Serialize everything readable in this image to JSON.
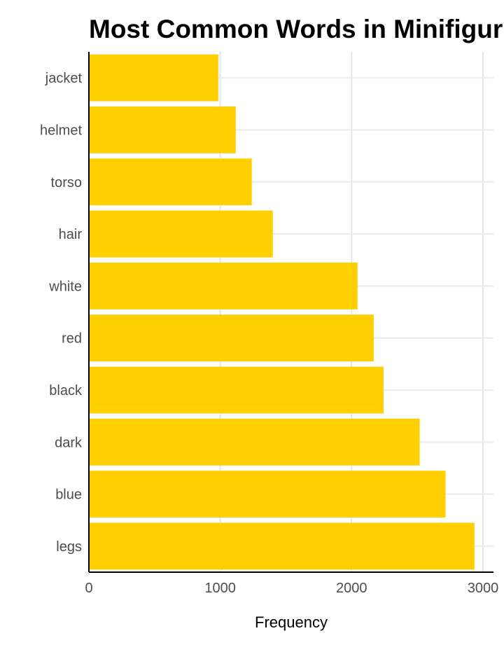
{
  "chart_data": {
    "type": "bar",
    "orientation": "horizontal",
    "title": "Most Common Words in Minifigur",
    "xlabel": "Frequency",
    "ylabel": "",
    "categories": [
      "jacket",
      "helmet",
      "torso",
      "hair",
      "white",
      "red",
      "black",
      "dark",
      "blue",
      "legs"
    ],
    "values": [
      985,
      1118,
      1240,
      1400,
      2045,
      2168,
      2243,
      2518,
      2715,
      2935
    ],
    "xlim": [
      0,
      3080
    ],
    "xticks": [
      0,
      1000,
      2000,
      3000
    ],
    "grid": true,
    "legend": "none",
    "bar_color": "#FFCF00"
  }
}
